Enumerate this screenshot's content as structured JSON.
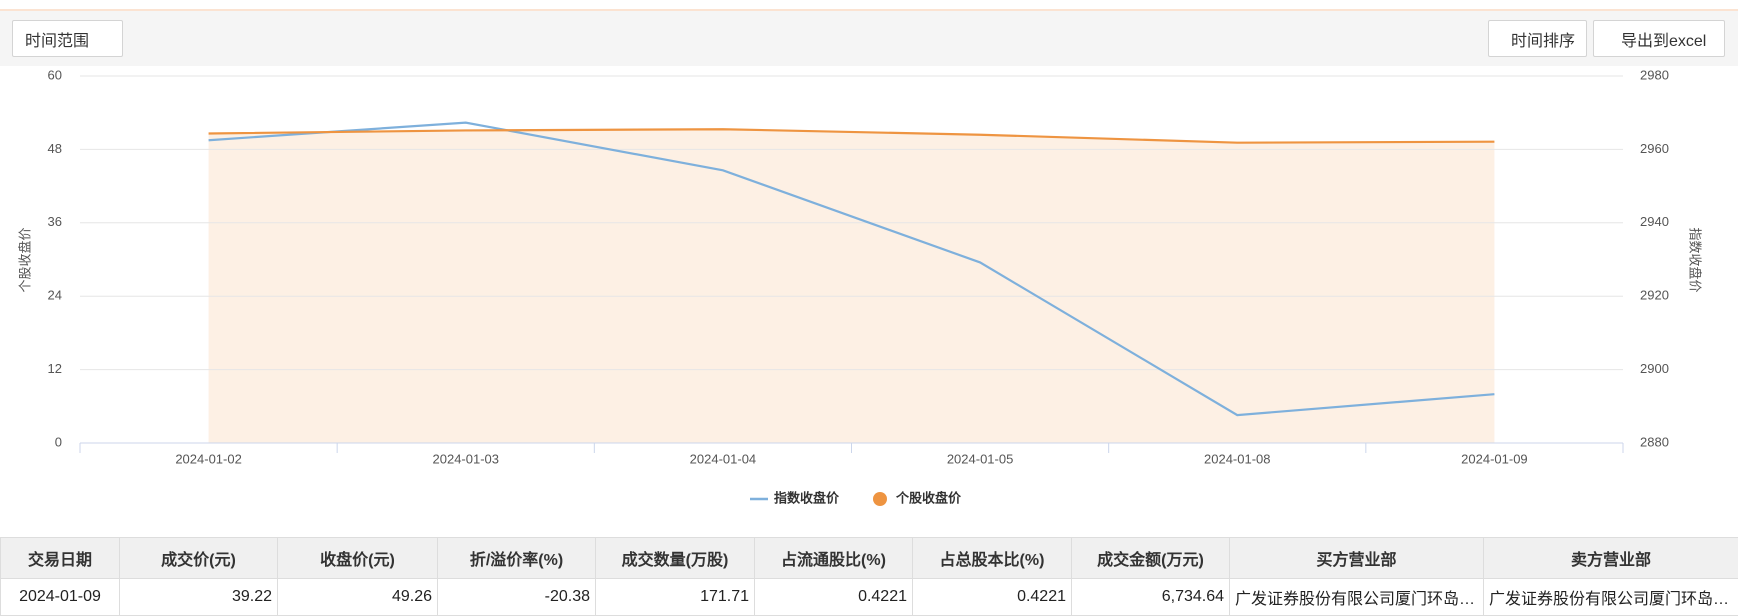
{
  "toolbar": {
    "range": "时间范围",
    "sort": "时间排序",
    "export": "导出到excel"
  },
  "chart_data": {
    "type": "line",
    "categories": [
      "2024-01-02",
      "2024-01-03",
      "2024-01-04",
      "2024-01-05",
      "2024-01-08",
      "2024-01-09"
    ],
    "series": [
      {
        "name": "指数收盘价",
        "color": "#7eb0dc",
        "axis": "y2",
        "values": [
          2962.5,
          2967.3,
          2954.3,
          2929.2,
          2887.6,
          2893.3
        ]
      },
      {
        "name": "个股收盘价",
        "color": "#ee9441",
        "area": "#fdf0e4",
        "values": [
          50.6,
          51.1,
          51.3,
          50.4,
          49.1,
          49.26
        ]
      }
    ],
    "ylabel": "个股收盘价",
    "y2label": "指数收盘价",
    "ylim": [
      0,
      60
    ],
    "yticks": [
      0,
      12,
      24,
      36,
      48,
      60
    ],
    "y2lim": [
      2880,
      2980
    ],
    "y2ticks": [
      2880,
      2900,
      2920,
      2940,
      2960,
      2980
    ],
    "grid": true,
    "legend": "bottom"
  },
  "table": {
    "header": [
      "交易日期",
      "成交价(元)",
      "收盘价(元)",
      "折/溢价率(%)",
      "成交数量(万股)",
      "占流通股比(%)",
      "占总股本比(%)",
      "成交金额(万元)",
      "买方营业部",
      "卖方营业部"
    ],
    "rows": [
      [
        "2024-01-09",
        "39.22",
        "49.26",
        "-20.38",
        "171.71",
        "0.4221",
        "0.4221",
        "6,734.64",
        "广发证券股份有限公司厦门环岛东路证券营业部",
        "广发证券股份有限公司厦门环岛东路证券营业部"
      ]
    ]
  }
}
